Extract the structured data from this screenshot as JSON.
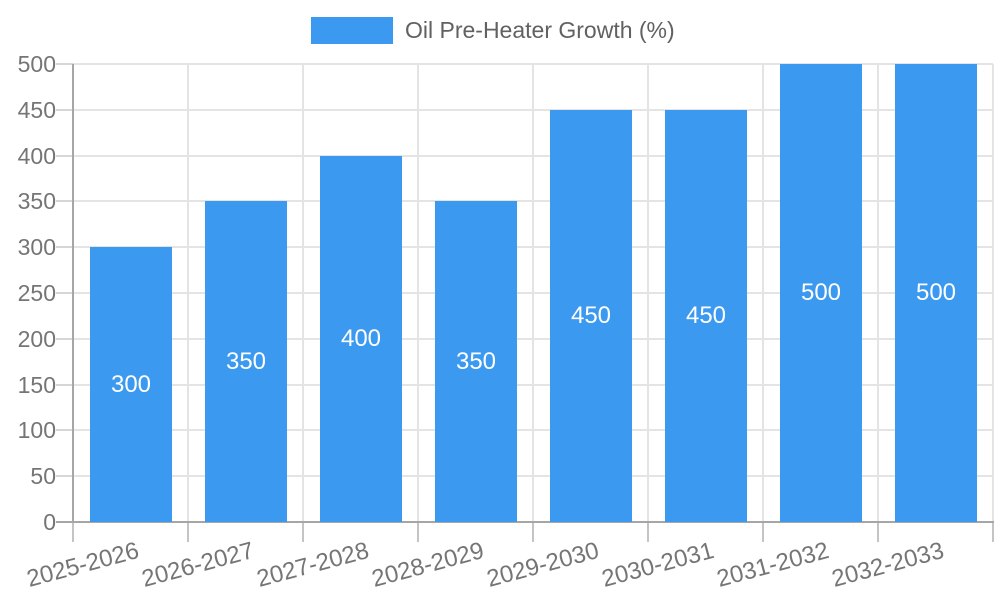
{
  "chart_data": {
    "type": "bar",
    "title": "",
    "legend": {
      "label": "Oil Pre-Heater Growth (%)",
      "position": "top"
    },
    "series": [
      {
        "name": "Oil Pre-Heater Growth (%)",
        "values": [
          300,
          350,
          400,
          350,
          450,
          450,
          500,
          500
        ]
      }
    ],
    "categories": [
      "2025-2026",
      "2026-2027",
      "2027-2028",
      "2028-2029",
      "2029-2030",
      "2030-2031",
      "2031-2032",
      "2032-2033"
    ],
    "bar_labels": [
      "300",
      "350",
      "400",
      "350",
      "450",
      "450",
      "500",
      "500"
    ],
    "xlabel": "",
    "ylabel": "",
    "ylim": [
      0,
      500
    ],
    "yticks": [
      0,
      50,
      100,
      150,
      200,
      250,
      300,
      350,
      400,
      450,
      500
    ],
    "grid": true,
    "x_label_rotation_deg": -15,
    "colors": {
      "bar": "#3b99f0",
      "grid": "#e4e4e4",
      "axis": "#a6a6a6",
      "axis_text": "#757575",
      "legend_text": "#616161",
      "bar_label_text": "#ffffff",
      "background": "#ffffff"
    }
  }
}
